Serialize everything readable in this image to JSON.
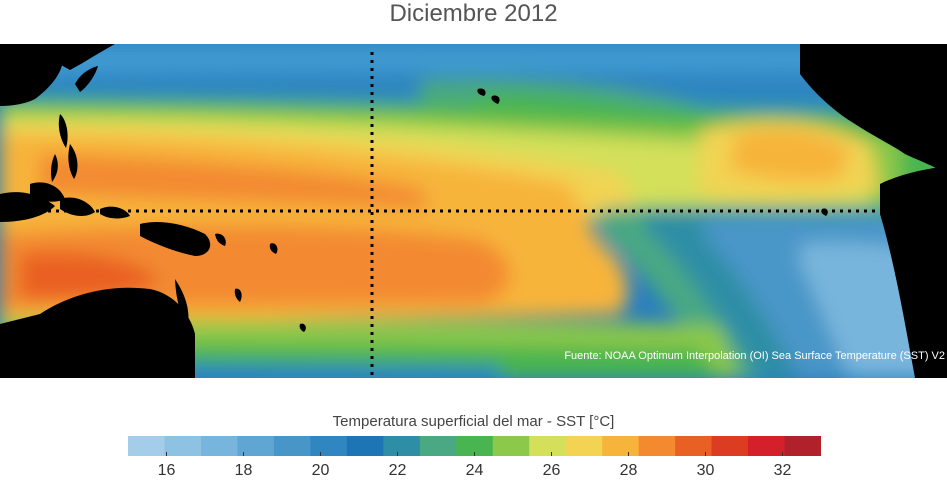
{
  "title": "Diciembre 2012",
  "map": {
    "source": "Fuente: NOAA Optimum Interpolation (OI) Sea Surface Temperature (SST) V2",
    "land_color": "#000000",
    "marker_line_color": "#000000"
  },
  "colorbar": {
    "label": "Temperatura superficial del mar - SST  [°C]",
    "unit": "°C",
    "min": 15,
    "max": 33,
    "tick_values": [
      16,
      18,
      20,
      22,
      24,
      26,
      28,
      30,
      32
    ],
    "tick_labels": [
      "16",
      "18",
      "20",
      "22",
      "24",
      "26",
      "28",
      "30",
      "32"
    ],
    "colors": [
      "#a3cde9",
      "#8ec2e3",
      "#78b5dc",
      "#5fa6d3",
      "#4896c8",
      "#2f86c0",
      "#1e75b5",
      "#2d8ea6",
      "#4aa883",
      "#48b550",
      "#8cc84a",
      "#d4e05a",
      "#f2d352",
      "#f7b43b",
      "#f38a30",
      "#e96024",
      "#dc3c22",
      "#d3202a",
      "#b0212c"
    ]
  }
}
